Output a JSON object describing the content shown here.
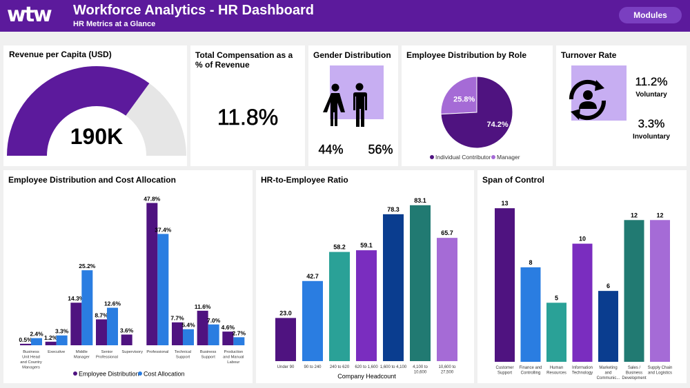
{
  "header": {
    "logo": "wtw",
    "title": "Workforce Analytics - HR Dashboard",
    "subtitle": "HR Metrics at a Glance",
    "modules_label": "Modules"
  },
  "colors": {
    "header_bg": "#5c1a9c",
    "button_bg": "#7a3fc0",
    "dark_purple": "#4f1380",
    "gauge_track": "#e6e6e6",
    "lavender": "#c7aef2",
    "blue": "#2a7de1",
    "teal": "#2aa197",
    "navy": "#0a3d8f",
    "dark_teal": "#217a72",
    "light_purple": "#a56bd6",
    "purple": "#7a2dbf"
  },
  "revenue": {
    "title": "Revenue per Capita (USD)",
    "value": "190K",
    "gauge_fraction": 0.7
  },
  "compensation": {
    "title": "Total Compensation as a % of Revenue",
    "value": "11.8%"
  },
  "gender": {
    "title": "Gender Distribution",
    "female": "44%",
    "male": "56%",
    "icon_female": "woman-icon",
    "icon_male": "man-icon"
  },
  "role": {
    "title": "Employee Distribution by Role",
    "legend": [
      "Individual Contributor",
      "Manager"
    ],
    "labels": [
      "74.2%",
      "25.8%"
    ]
  },
  "turnover": {
    "title": "Turnover Rate",
    "voluntary_value": "11.2%",
    "voluntary_label": "Voluntary",
    "involuntary_value": "3.3%",
    "involuntary_label": "Involuntary",
    "icon": "employee-cycle-icon"
  },
  "chart_data": [
    {
      "type": "pie",
      "title": "Employee Distribution by Role",
      "categories": [
        "Individual Contributor",
        "Manager"
      ],
      "values": [
        74.2,
        25.8
      ],
      "legend": "bottom"
    },
    {
      "type": "bar",
      "title": "Employee Distribution and Cost Allocation",
      "categories": [
        "Business Unit Head and Country Managers",
        "Executive",
        "Middle Manager",
        "Senior Professional",
        "Supervisory",
        "Professional",
        "Technical Support",
        "Business Support",
        "Production and Manual Labour"
      ],
      "category_lines": [
        [
          "Business",
          "Unit Head",
          "and Country",
          "Managers"
        ],
        [
          "Executive"
        ],
        [
          "Middle",
          "Manager"
        ],
        [
          "Senior",
          "Professional"
        ],
        [
          "Supervisory"
        ],
        [
          "Professional"
        ],
        [
          "Technical",
          "Support"
        ],
        [
          "Business",
          "Support"
        ],
        [
          "Production",
          "and Manual",
          "Labour"
        ]
      ],
      "series": [
        {
          "name": "Employee Distribution",
          "values": [
            0.5,
            1.2,
            14.3,
            8.7,
            3.6,
            47.8,
            7.7,
            11.6,
            4.6
          ],
          "labels": [
            "0.5%",
            "1.2%",
            "14.3%",
            "8.7%",
            "3.6%",
            "47.8%",
            "7.7%",
            "11.6%",
            "4.6%"
          ]
        },
        {
          "name": "Cost Allocation",
          "values": [
            2.4,
            3.3,
            25.2,
            12.6,
            null,
            37.4,
            5.4,
            7.0,
            2.7
          ],
          "labels": [
            "2.4%",
            "3.3%",
            "25.2%",
            "12.6%",
            "",
            "37.4%",
            "5.4%",
            "7.0%",
            "2.7%"
          ]
        }
      ],
      "ylim": [
        0,
        50
      ],
      "legend": "bottom",
      "grid": false
    },
    {
      "type": "bar",
      "title": "HR-to-Employee Ratio",
      "xlabel": "Company Headcount",
      "categories": [
        "Under 90",
        "90 to 240",
        "240 to 620",
        "620 to 1,600",
        "1,600 to 4,100",
        "4,100 to 10,600",
        "10,600 to 27,500"
      ],
      "category_lines": [
        [
          "Under 90"
        ],
        [
          "90 to 240"
        ],
        [
          "240 to 620"
        ],
        [
          "620 to 1,600"
        ],
        [
          "1,600 to 4,100"
        ],
        [
          "4,100 to",
          "10,600"
        ],
        [
          "10,600 to",
          "27,500"
        ]
      ],
      "values": [
        23.0,
        42.7,
        58.2,
        59.1,
        78.3,
        83.1,
        65.7
      ],
      "labels": [
        "23.0",
        "42.7",
        "58.2",
        "59.1",
        "78.3",
        "83.1",
        "65.7"
      ],
      "ylim": [
        0,
        90
      ],
      "grid": false
    },
    {
      "type": "bar",
      "title": "Span of Control",
      "categories": [
        "Customer Support",
        "Finance and Controlling",
        "Human Resources",
        "Information Technology",
        "Marketing and Communic...",
        "Sales / Business Development",
        "Supply Chain and Logistics"
      ],
      "category_lines": [
        [
          "Customer",
          "Support"
        ],
        [
          "Finance and",
          "Controlling"
        ],
        [
          "Human",
          "Resources"
        ],
        [
          "Information",
          "Technology"
        ],
        [
          "Marketing",
          "and",
          "Communic..."
        ],
        [
          "Sales /",
          "Business",
          "Development"
        ],
        [
          "Supply Chain",
          "and Logistics"
        ]
      ],
      "values": [
        13,
        8,
        5,
        10,
        6,
        12,
        12
      ],
      "labels": [
        "13",
        "8",
        "5",
        "10",
        "6",
        "12",
        "12"
      ],
      "ylim": [
        0,
        14
      ],
      "grid": false
    }
  ]
}
